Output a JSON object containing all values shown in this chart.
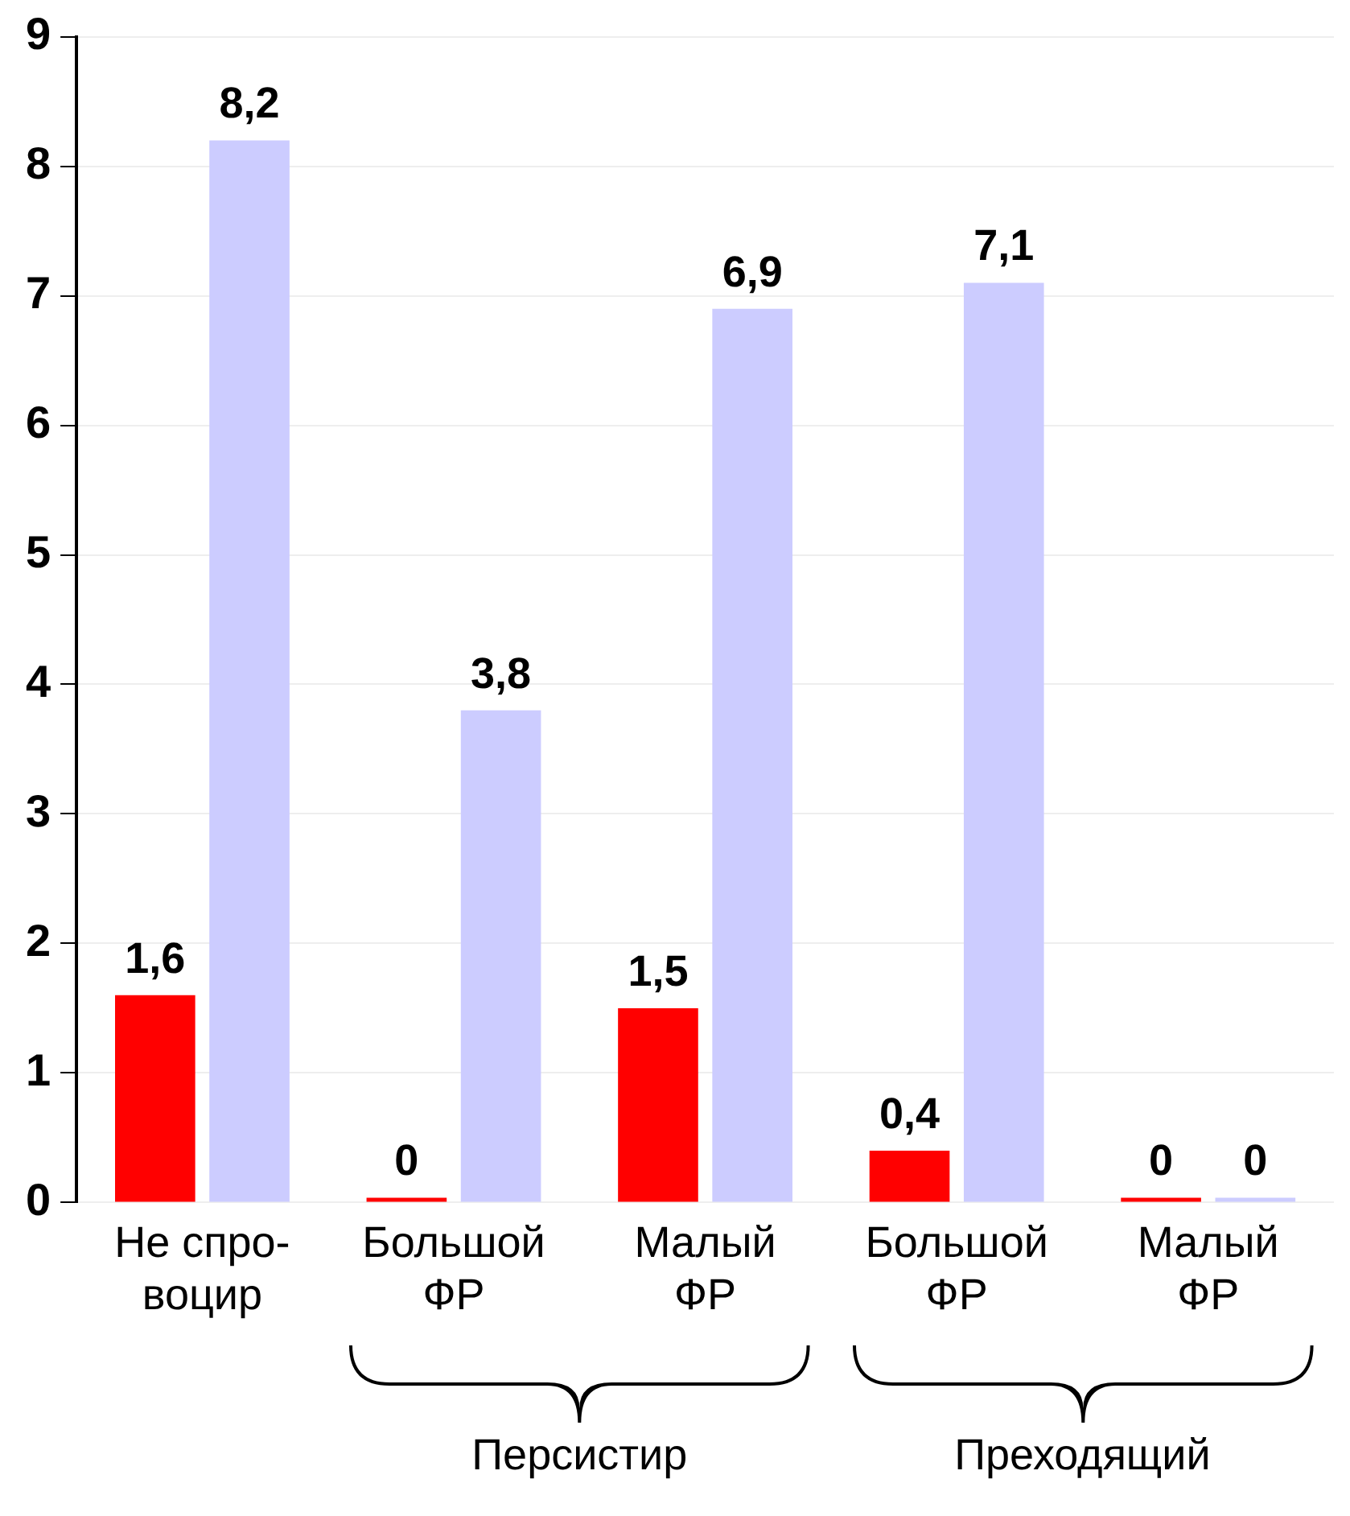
{
  "chart_data": {
    "type": "bar",
    "categories": [
      "Не спро-\nвоцир",
      "Большой\nФР",
      "Малый\nФР",
      "Большой\nФР",
      "Малый\nФР"
    ],
    "series": [
      {
        "color": "#ff0000",
        "values": [
          1.6,
          0,
          1.5,
          0.4,
          0
        ],
        "value_labels": [
          "1,6",
          "0",
          "1,5",
          "0,4",
          "0"
        ]
      },
      {
        "color": "#ccccff",
        "values": [
          8.2,
          3.8,
          6.9,
          7.1,
          0
        ],
        "value_labels": [
          "8,2",
          "3,8",
          "6,9",
          "7,1",
          "0"
        ]
      }
    ],
    "ylim": [
      0,
      9
    ],
    "yticks": [
      0,
      1,
      2,
      3,
      4,
      5,
      6,
      7,
      8,
      9
    ],
    "grid": "y",
    "legend": false,
    "annotations": [
      "Персистир",
      "Преходящий"
    ]
  }
}
